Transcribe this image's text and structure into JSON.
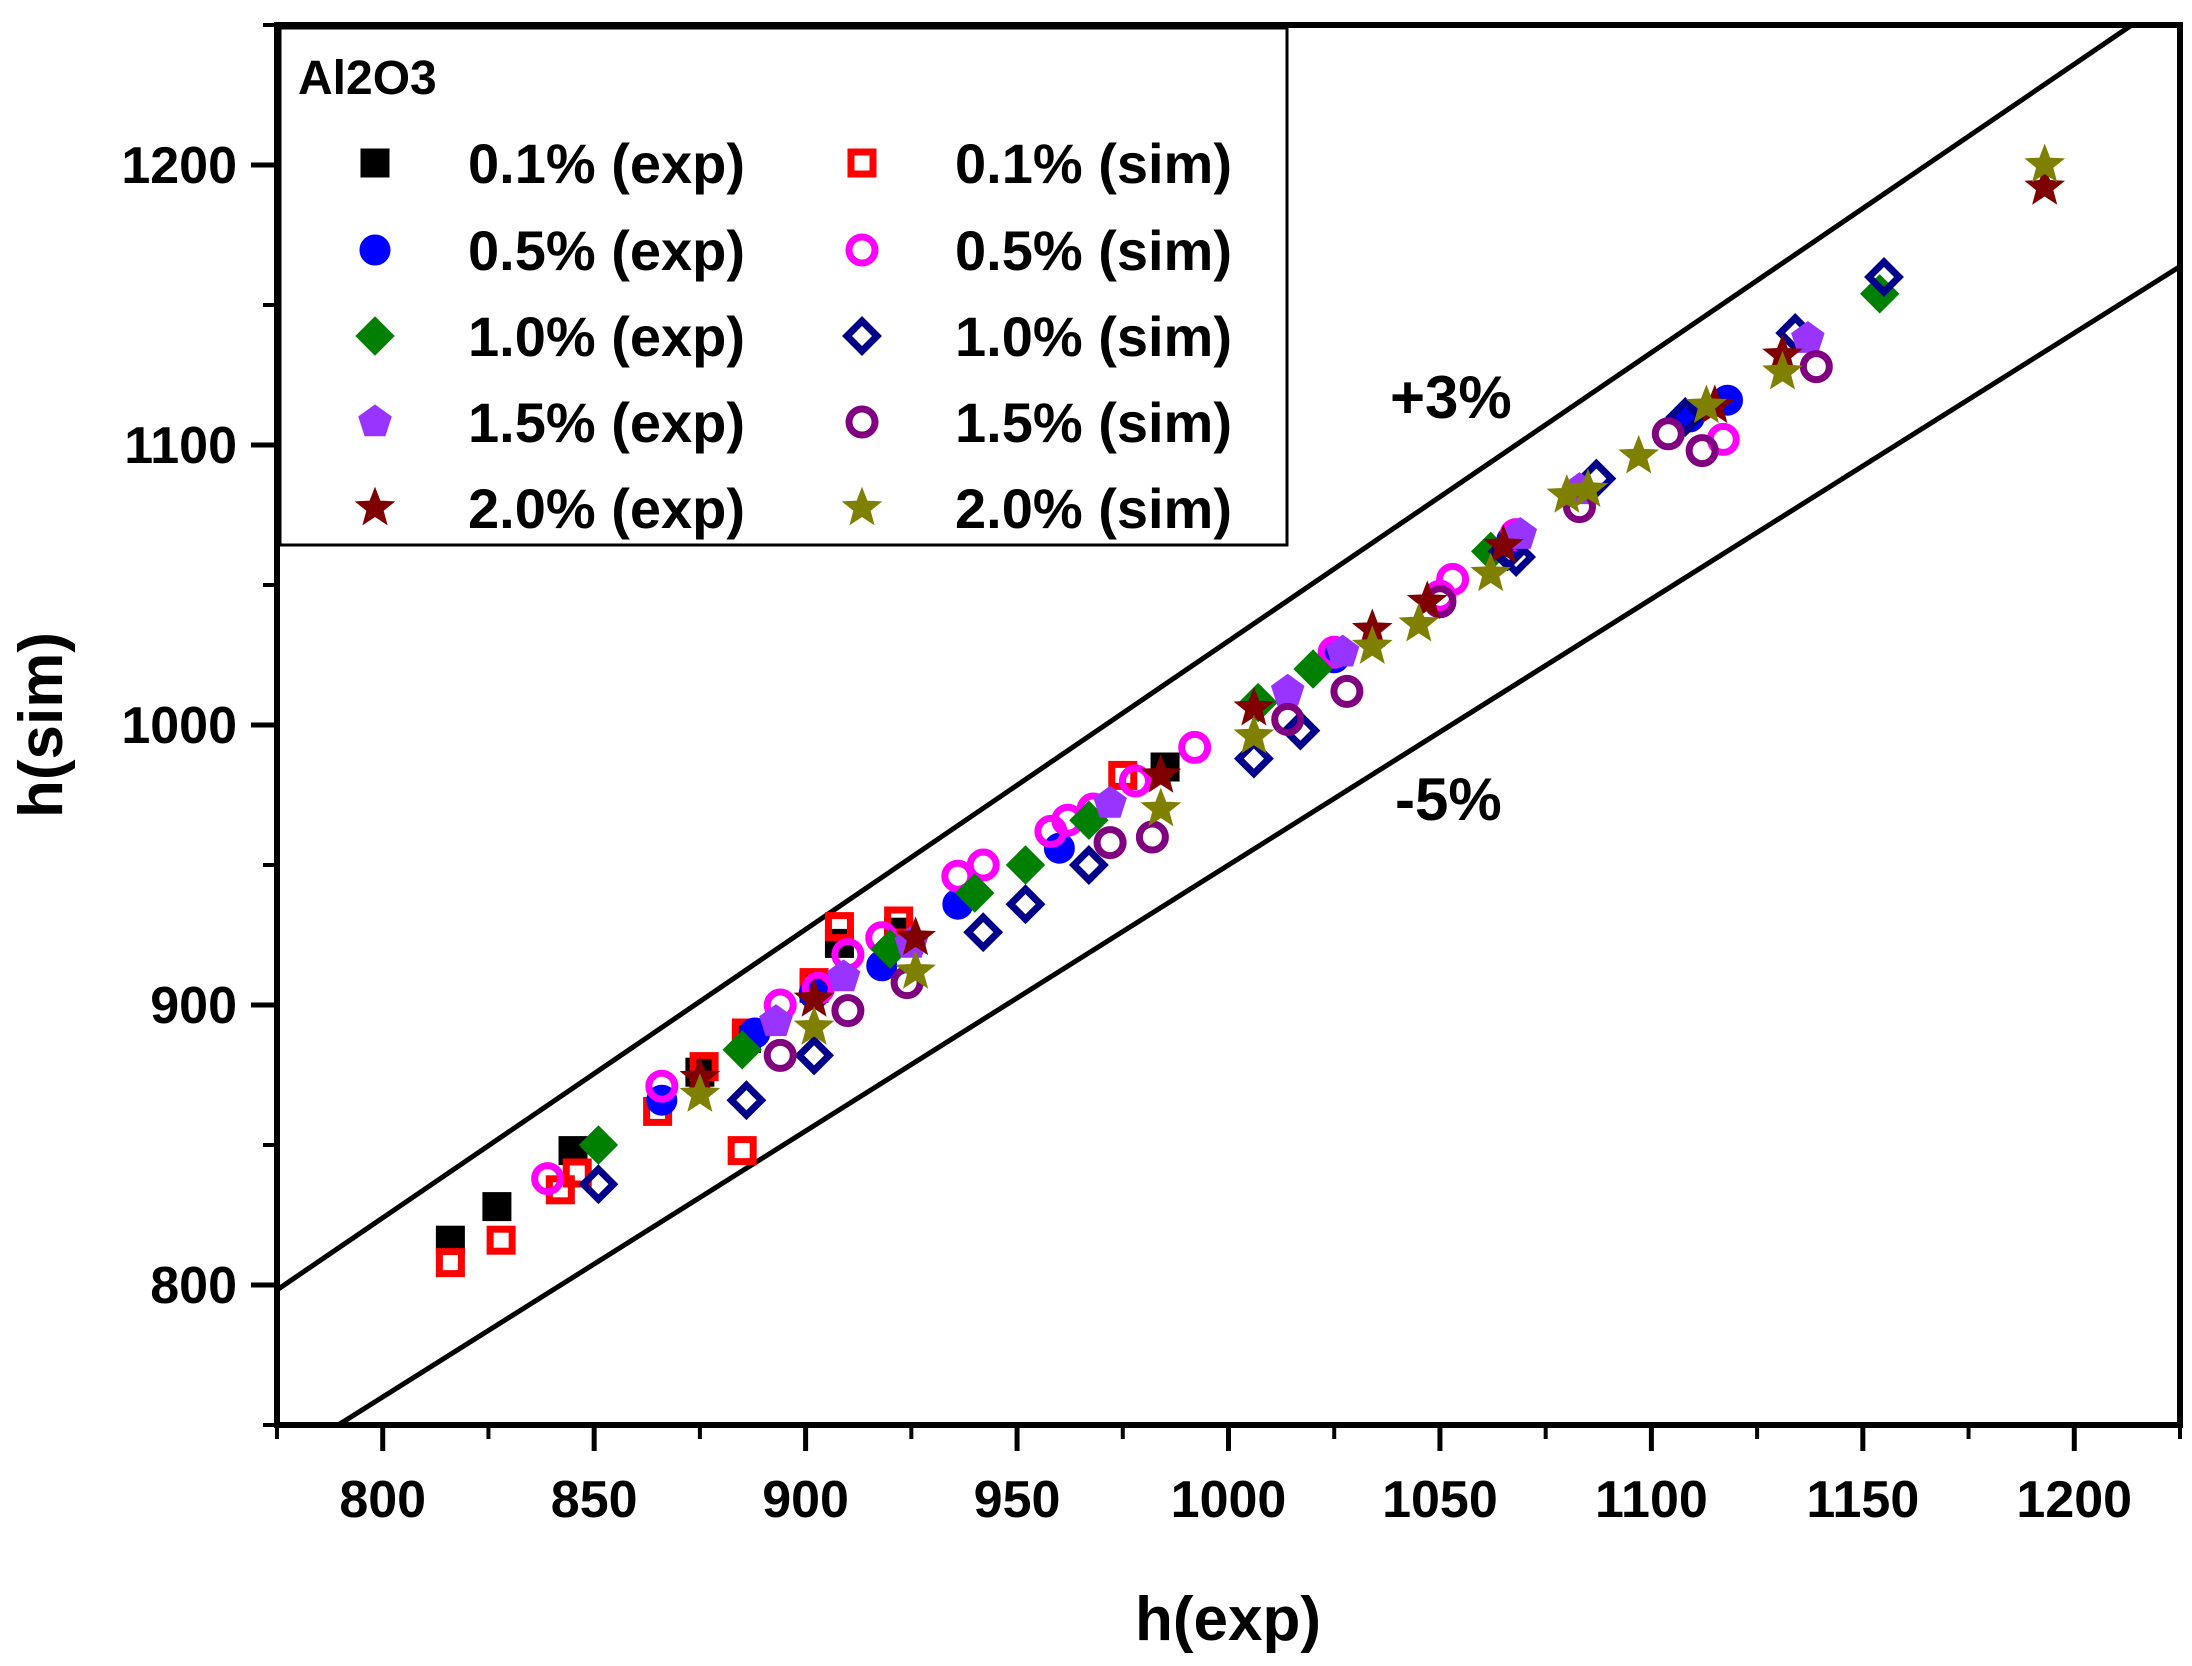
{
  "chart_data": {
    "type": "scatter",
    "xlabel": "h(exp)",
    "ylabel": "h(sim)",
    "xlim": [
      775,
      1225
    ],
    "ylim": [
      750,
      1250
    ],
    "x_ticks": [
      800,
      850,
      900,
      950,
      1000,
      1050,
      1100,
      1150,
      1200
    ],
    "y_ticks": [
      800,
      900,
      1000,
      1100,
      1200
    ],
    "x_tick_labels": [
      "800",
      "850",
      "900",
      "950",
      "1000",
      "1050",
      "1100",
      "1150",
      "1200"
    ],
    "y_tick_labels": [
      "800",
      "900",
      "1000",
      "1100",
      "1200"
    ],
    "grid": false,
    "legend": {
      "title": "Al2O3",
      "position": "top-left",
      "columns": 2
    },
    "reference_lines": [
      {
        "label": "+3%",
        "slope": 1.03
      },
      {
        "label": "-5%",
        "slope": 0.95
      }
    ],
    "series": [
      {
        "name": "0.1% (exp)",
        "marker": "square",
        "filled": true,
        "color": "#000000",
        "points": [
          [
            816,
            816
          ],
          [
            827,
            828
          ],
          [
            845,
            848
          ],
          [
            875,
            876
          ],
          [
            886,
            888
          ],
          [
            902,
            906
          ],
          [
            908,
            922
          ],
          [
            922,
            926
          ],
          [
            985,
            985
          ]
        ]
      },
      {
        "name": "0.1% (sim)",
        "marker": "square",
        "filled": false,
        "color": "#ff0000",
        "points": [
          [
            816,
            808
          ],
          [
            828,
            816
          ],
          [
            842,
            834
          ],
          [
            846,
            840
          ],
          [
            865,
            862
          ],
          [
            876,
            878
          ],
          [
            885,
            848
          ],
          [
            886,
            890
          ],
          [
            902,
            908
          ],
          [
            908,
            928
          ],
          [
            922,
            930
          ],
          [
            975,
            982
          ]
        ]
      },
      {
        "name": "0.5% (exp)",
        "marker": "circle",
        "filled": true,
        "color": "#0000ff",
        "points": [
          [
            866,
            866
          ],
          [
            888,
            890
          ],
          [
            902,
            904
          ],
          [
            918,
            914
          ],
          [
            936,
            936
          ],
          [
            960,
            956
          ],
          [
            1025,
            1024
          ],
          [
            1067,
            1066
          ],
          [
            1109,
            1110
          ],
          [
            1118,
            1116
          ]
        ]
      },
      {
        "name": "0.5% (sim)",
        "marker": "circle",
        "filled": false,
        "color": "#ff00ff",
        "points": [
          [
            839,
            838
          ],
          [
            866,
            871
          ],
          [
            894,
            900
          ],
          [
            903,
            906
          ],
          [
            910,
            918
          ],
          [
            918,
            924
          ],
          [
            936,
            946
          ],
          [
            942,
            950
          ],
          [
            958,
            962
          ],
          [
            962,
            966
          ],
          [
            968,
            970
          ],
          [
            978,
            980
          ],
          [
            992,
            992
          ],
          [
            1025,
            1026
          ],
          [
            1050,
            1046
          ],
          [
            1053,
            1052
          ],
          [
            1068,
            1068
          ],
          [
            1117,
            1102
          ]
        ]
      },
      {
        "name": "1.0% (exp)",
        "marker": "diamond",
        "filled": true,
        "color": "#008000",
        "points": [
          [
            851,
            850
          ],
          [
            885,
            884
          ],
          [
            920,
            920
          ],
          [
            940,
            940
          ],
          [
            952,
            950
          ],
          [
            967,
            966
          ],
          [
            1007,
            1008
          ],
          [
            1020,
            1020
          ],
          [
            1062,
            1062
          ],
          [
            1154,
            1154
          ]
        ]
      },
      {
        "name": "1.0% (sim)",
        "marker": "diamond",
        "filled": false,
        "color": "#00008b",
        "points": [
          [
            851,
            836
          ],
          [
            886,
            866
          ],
          [
            902,
            882
          ],
          [
            942,
            926
          ],
          [
            952,
            936
          ],
          [
            967,
            950
          ],
          [
            1006,
            988
          ],
          [
            1017,
            998
          ],
          [
            1066,
            1062
          ],
          [
            1068,
            1060
          ],
          [
            1087,
            1088
          ],
          [
            1108,
            1110
          ],
          [
            1134,
            1140
          ],
          [
            1155,
            1160
          ]
        ]
      },
      {
        "name": "1.5% (exp)",
        "marker": "pentagon",
        "filled": true,
        "color": "#9933ff",
        "points": [
          [
            893,
            894
          ],
          [
            909,
            910
          ],
          [
            925,
            922
          ],
          [
            972,
            972
          ],
          [
            1014,
            1012
          ],
          [
            1027,
            1026
          ],
          [
            1069,
            1068
          ],
          [
            1083,
            1084
          ],
          [
            1137,
            1138
          ]
        ]
      },
      {
        "name": "1.5% (sim)",
        "marker": "circle",
        "filled": false,
        "color": "#800080",
        "points": [
          [
            894,
            882
          ],
          [
            910,
            898
          ],
          [
            924,
            908
          ],
          [
            972,
            958
          ],
          [
            982,
            960
          ],
          [
            1014,
            1002
          ],
          [
            1028,
            1012
          ],
          [
            1050,
            1044
          ],
          [
            1083,
            1078
          ],
          [
            1104,
            1104
          ],
          [
            1112,
            1098
          ],
          [
            1139,
            1128
          ]
        ]
      },
      {
        "name": "2.0% (exp)",
        "marker": "star",
        "filled": true,
        "color": "#800000",
        "points": [
          [
            875,
            874
          ],
          [
            902,
            902
          ],
          [
            926,
            924
          ],
          [
            984,
            982
          ],
          [
            1006,
            1006
          ],
          [
            1034,
            1034
          ],
          [
            1047,
            1044
          ],
          [
            1065,
            1064
          ],
          [
            1115,
            1114
          ],
          [
            1131,
            1132
          ],
          [
            1193,
            1192
          ]
        ]
      },
      {
        "name": "2.0% (sim)",
        "marker": "star",
        "filled": true,
        "color": "#808000",
        "points": [
          [
            875,
            868
          ],
          [
            902,
            892
          ],
          [
            926,
            912
          ],
          [
            984,
            970
          ],
          [
            1006,
            996
          ],
          [
            1034,
            1028
          ],
          [
            1045,
            1036
          ],
          [
            1062,
            1054
          ],
          [
            1080,
            1082
          ],
          [
            1085,
            1084
          ],
          [
            1097,
            1096
          ],
          [
            1113,
            1114
          ],
          [
            1131,
            1126
          ],
          [
            1193,
            1200
          ]
        ]
      }
    ]
  }
}
